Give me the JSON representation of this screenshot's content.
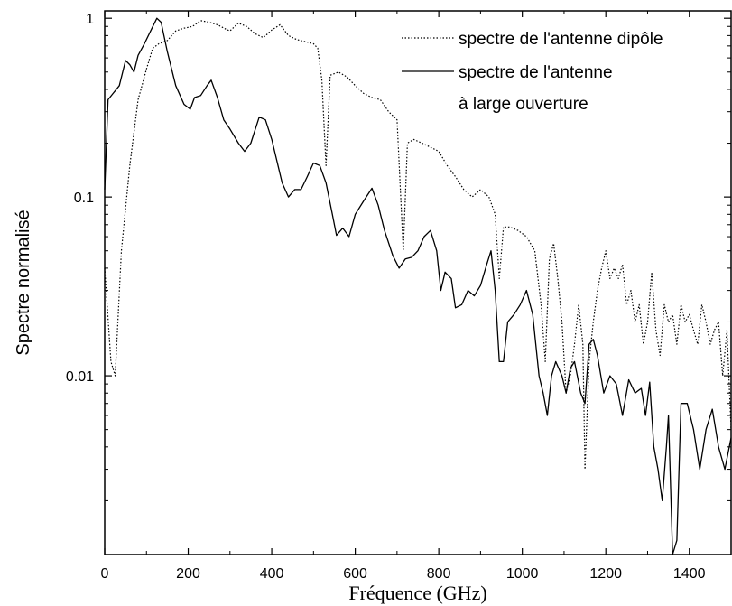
{
  "chart_data": {
    "type": "line",
    "xlabel": "Fréquence (GHz)",
    "ylabel": "Spectre normalisé",
    "xlim": [
      0,
      1500
    ],
    "ylim": [
      0.001,
      1.1
    ],
    "yscale": "log",
    "x_ticks": [
      0,
      200,
      400,
      600,
      800,
      1000,
      1200,
      1400
    ],
    "x_tick_labels": [
      "0",
      "200",
      "400",
      "600",
      "800",
      "1000",
      "1200",
      "1400"
    ],
    "y_ticks": [
      1,
      0.1,
      0.01
    ],
    "y_tick_labels": [
      "1",
      "0.1",
      "0.01"
    ],
    "grid": false,
    "legend_placement": "top-right",
    "series": [
      {
        "name": "spectre de l'antenne dipôle",
        "style": "dotted",
        "color": "#000000",
        "points": [
          [
            0,
            0.04
          ],
          [
            15,
            0.012
          ],
          [
            25,
            0.01
          ],
          [
            40,
            0.05
          ],
          [
            60,
            0.15
          ],
          [
            80,
            0.35
          ],
          [
            100,
            0.52
          ],
          [
            115,
            0.68
          ],
          [
            130,
            0.72
          ],
          [
            150,
            0.75
          ],
          [
            170,
            0.85
          ],
          [
            190,
            0.88
          ],
          [
            210,
            0.9
          ],
          [
            230,
            0.97
          ],
          [
            250,
            0.95
          ],
          [
            270,
            0.92
          ],
          [
            290,
            0.87
          ],
          [
            300,
            0.85
          ],
          [
            320,
            0.94
          ],
          [
            340,
            0.9
          ],
          [
            360,
            0.82
          ],
          [
            380,
            0.78
          ],
          [
            400,
            0.86
          ],
          [
            420,
            0.92
          ],
          [
            440,
            0.8
          ],
          [
            460,
            0.76
          ],
          [
            480,
            0.74
          ],
          [
            500,
            0.72
          ],
          [
            510,
            0.68
          ],
          [
            520,
            0.45
          ],
          [
            530,
            0.15
          ],
          [
            540,
            0.48
          ],
          [
            560,
            0.5
          ],
          [
            580,
            0.47
          ],
          [
            600,
            0.42
          ],
          [
            620,
            0.38
          ],
          [
            640,
            0.36
          ],
          [
            660,
            0.35
          ],
          [
            680,
            0.3
          ],
          [
            700,
            0.27
          ],
          [
            715,
            0.05
          ],
          [
            725,
            0.2
          ],
          [
            740,
            0.21
          ],
          [
            760,
            0.2
          ],
          [
            780,
            0.19
          ],
          [
            800,
            0.18
          ],
          [
            820,
            0.15
          ],
          [
            840,
            0.13
          ],
          [
            860,
            0.11
          ],
          [
            880,
            0.1
          ],
          [
            900,
            0.11
          ],
          [
            920,
            0.1
          ],
          [
            935,
            0.08
          ],
          [
            945,
            0.035
          ],
          [
            955,
            0.068
          ],
          [
            970,
            0.068
          ],
          [
            990,
            0.065
          ],
          [
            1010,
            0.06
          ],
          [
            1030,
            0.05
          ],
          [
            1045,
            0.025
          ],
          [
            1055,
            0.012
          ],
          [
            1065,
            0.045
          ],
          [
            1075,
            0.055
          ],
          [
            1085,
            0.035
          ],
          [
            1095,
            0.02
          ],
          [
            1105,
            0.008
          ],
          [
            1115,
            0.01
          ],
          [
            1125,
            0.015
          ],
          [
            1135,
            0.025
          ],
          [
            1145,
            0.015
          ],
          [
            1150,
            0.003
          ],
          [
            1160,
            0.012
          ],
          [
            1170,
            0.02
          ],
          [
            1180,
            0.03
          ],
          [
            1190,
            0.04
          ],
          [
            1200,
            0.05
          ],
          [
            1210,
            0.035
          ],
          [
            1220,
            0.04
          ],
          [
            1230,
            0.035
          ],
          [
            1240,
            0.042
          ],
          [
            1250,
            0.025
          ],
          [
            1260,
            0.03
          ],
          [
            1270,
            0.02
          ],
          [
            1280,
            0.025
          ],
          [
            1290,
            0.015
          ],
          [
            1300,
            0.02
          ],
          [
            1310,
            0.038
          ],
          [
            1320,
            0.018
          ],
          [
            1330,
            0.013
          ],
          [
            1340,
            0.025
          ],
          [
            1350,
            0.02
          ],
          [
            1360,
            0.022
          ],
          [
            1370,
            0.015
          ],
          [
            1380,
            0.025
          ],
          [
            1390,
            0.02
          ],
          [
            1400,
            0.022
          ],
          [
            1410,
            0.018
          ],
          [
            1420,
            0.015
          ],
          [
            1430,
            0.025
          ],
          [
            1440,
            0.02
          ],
          [
            1450,
            0.015
          ],
          [
            1460,
            0.018
          ],
          [
            1470,
            0.02
          ],
          [
            1480,
            0.01
          ],
          [
            1490,
            0.018
          ],
          [
            1500,
            0.005
          ]
        ]
      },
      {
        "name": "spectre de l'antenne",
        "name_line2": "à large ouverture",
        "style": "solid",
        "color": "#000000",
        "points": [
          [
            0,
            0.11
          ],
          [
            8,
            0.35
          ],
          [
            20,
            0.38
          ],
          [
            35,
            0.42
          ],
          [
            50,
            0.58
          ],
          [
            60,
            0.55
          ],
          [
            70,
            0.5
          ],
          [
            80,
            0.62
          ],
          [
            95,
            0.72
          ],
          [
            110,
            0.85
          ],
          [
            125,
            1.0
          ],
          [
            135,
            0.95
          ],
          [
            150,
            0.65
          ],
          [
            170,
            0.42
          ],
          [
            190,
            0.33
          ],
          [
            205,
            0.31
          ],
          [
            215,
            0.36
          ],
          [
            230,
            0.37
          ],
          [
            245,
            0.42
          ],
          [
            255,
            0.45
          ],
          [
            270,
            0.36
          ],
          [
            285,
            0.27
          ],
          [
            300,
            0.24
          ],
          [
            320,
            0.2
          ],
          [
            335,
            0.18
          ],
          [
            350,
            0.2
          ],
          [
            370,
            0.28
          ],
          [
            385,
            0.27
          ],
          [
            400,
            0.21
          ],
          [
            415,
            0.15
          ],
          [
            425,
            0.12
          ],
          [
            440,
            0.1
          ],
          [
            455,
            0.11
          ],
          [
            470,
            0.11
          ],
          [
            485,
            0.13
          ],
          [
            500,
            0.155
          ],
          [
            515,
            0.15
          ],
          [
            530,
            0.12
          ],
          [
            545,
            0.08
          ],
          [
            555,
            0.061
          ],
          [
            570,
            0.067
          ],
          [
            585,
            0.06
          ],
          [
            600,
            0.08
          ],
          [
            620,
            0.095
          ],
          [
            640,
            0.112
          ],
          [
            655,
            0.09
          ],
          [
            670,
            0.065
          ],
          [
            690,
            0.047
          ],
          [
            705,
            0.04
          ],
          [
            720,
            0.045
          ],
          [
            735,
            0.046
          ],
          [
            750,
            0.05
          ],
          [
            765,
            0.06
          ],
          [
            780,
            0.065
          ],
          [
            795,
            0.05
          ],
          [
            805,
            0.03
          ],
          [
            815,
            0.038
          ],
          [
            830,
            0.035
          ],
          [
            840,
            0.024
          ],
          [
            855,
            0.025
          ],
          [
            870,
            0.03
          ],
          [
            885,
            0.028
          ],
          [
            900,
            0.032
          ],
          [
            915,
            0.042
          ],
          [
            925,
            0.05
          ],
          [
            935,
            0.03
          ],
          [
            945,
            0.012
          ],
          [
            955,
            0.012
          ],
          [
            965,
            0.02
          ],
          [
            980,
            0.022
          ],
          [
            995,
            0.025
          ],
          [
            1010,
            0.03
          ],
          [
            1025,
            0.022
          ],
          [
            1040,
            0.01
          ],
          [
            1050,
            0.008
          ],
          [
            1060,
            0.006
          ],
          [
            1070,
            0.01
          ],
          [
            1080,
            0.012
          ],
          [
            1095,
            0.01
          ],
          [
            1105,
            0.008
          ],
          [
            1115,
            0.011
          ],
          [
            1125,
            0.012
          ],
          [
            1140,
            0.008
          ],
          [
            1150,
            0.007
          ],
          [
            1160,
            0.015
          ],
          [
            1170,
            0.016
          ],
          [
            1180,
            0.013
          ],
          [
            1195,
            0.008
          ],
          [
            1210,
            0.01
          ],
          [
            1225,
            0.009
          ],
          [
            1240,
            0.006
          ],
          [
            1255,
            0.0095
          ],
          [
            1270,
            0.008
          ],
          [
            1285,
            0.0085
          ],
          [
            1295,
            0.006
          ],
          [
            1305,
            0.0092
          ],
          [
            1315,
            0.004
          ],
          [
            1325,
            0.003
          ],
          [
            1335,
            0.002
          ],
          [
            1345,
            0.004
          ],
          [
            1350,
            0.006
          ],
          [
            1360,
            0.001
          ],
          [
            1370,
            0.0012
          ],
          [
            1380,
            0.007
          ],
          [
            1395,
            0.007
          ],
          [
            1410,
            0.005
          ],
          [
            1425,
            0.003
          ],
          [
            1440,
            0.005
          ],
          [
            1455,
            0.0065
          ],
          [
            1470,
            0.004
          ],
          [
            1485,
            0.003
          ],
          [
            1500,
            0.0045
          ]
        ]
      }
    ]
  }
}
